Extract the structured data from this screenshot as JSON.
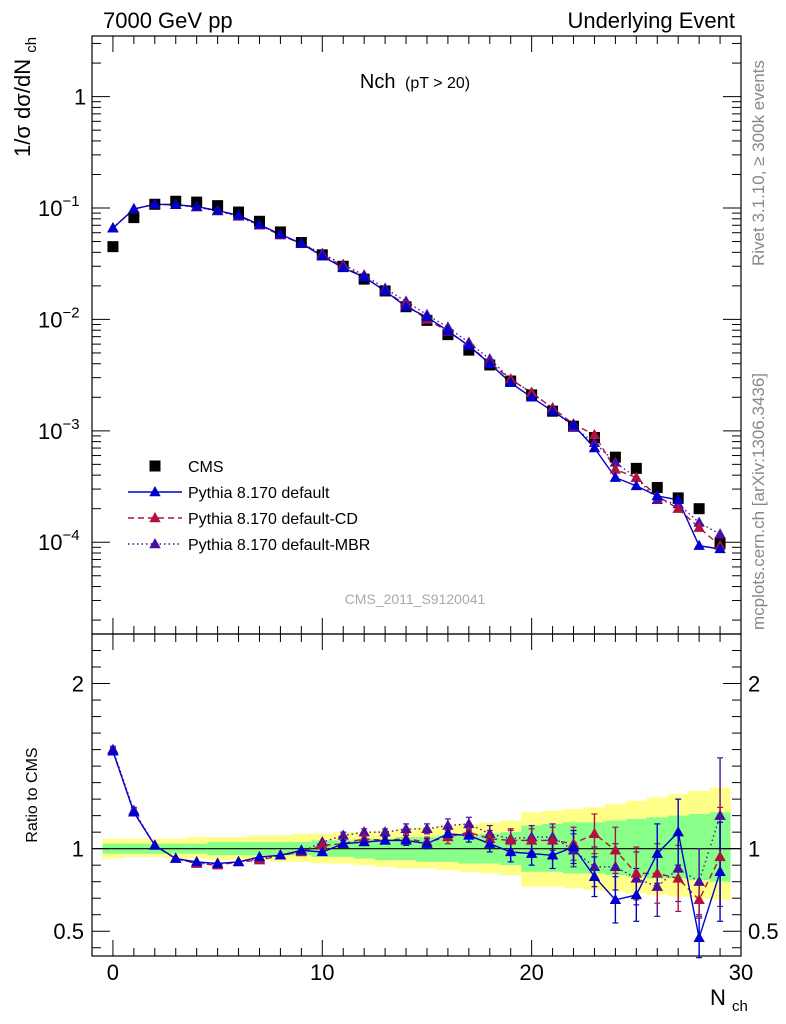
{
  "header": {
    "left": "7000 GeV pp",
    "right": "Underlying Event"
  },
  "plot_title": {
    "main": "Nch",
    "sub": "(pT > 20)"
  },
  "watermark": "CMS_2011_S9120041",
  "side_labels": {
    "rivet": "Rivet 3.1.10, ≥ 300k events",
    "mcplots": "mcplots.cern.ch [arXiv:1306.3436]"
  },
  "colors": {
    "cms": "#000000",
    "default": "#0000cc",
    "cd": "#b0123c",
    "mbr": "#4b0fa0",
    "band_yellow": "#ffff88",
    "band_green": "#88ff88"
  },
  "chart_data": [
    {
      "type": "scatter",
      "panel": "main",
      "ylabel_main": "1/σ dσ/dN",
      "ylabel_sub": "ch",
      "xlabel_main": "N",
      "xlabel_sub": "ch",
      "yscale": "log",
      "xlim": [
        -1,
        30
      ],
      "ylim": [
        1.5e-05,
        3.5
      ],
      "x_ticks": [
        0,
        10,
        20,
        30
      ],
      "y_ticks": [
        {
          "value": 1,
          "label": "1"
        },
        {
          "value": 0.1,
          "label": "10",
          "exp": "−1"
        },
        {
          "value": 0.01,
          "label": "10",
          "exp": "−2"
        },
        {
          "value": 0.001,
          "label": "10",
          "exp": "−3"
        },
        {
          "value": 0.0001,
          "label": "10",
          "exp": "−4"
        }
      ],
      "x": [
        0,
        1,
        2,
        3,
        4,
        5,
        6,
        7,
        8,
        9,
        10,
        11,
        12,
        13,
        14,
        15,
        16,
        17,
        18,
        19,
        20,
        21,
        22,
        23,
        24,
        25,
        26,
        27,
        28,
        29
      ],
      "series": [
        {
          "name": "CMS",
          "marker": "square",
          "values": [
            0.045,
            0.082,
            0.108,
            0.115,
            0.113,
            0.105,
            0.092,
            0.076,
            0.061,
            0.049,
            0.038,
            0.03,
            0.023,
            0.018,
            0.013,
            0.0098,
            0.0073,
            0.0053,
            0.0039,
            0.0028,
            0.0021,
            0.0015,
            0.0011,
            0.00087,
            0.00058,
            0.00046,
            0.00031,
            0.00025,
            0.0002,
            9.8e-05
          ]
        },
        {
          "name": "Pythia 8.170 default",
          "marker": "triangle",
          "line": "solid",
          "values": [
            0.066,
            0.098,
            0.108,
            0.107,
            0.103,
            0.095,
            0.086,
            0.071,
            0.058,
            0.048,
            0.037,
            0.029,
            0.024,
            0.018,
            0.013,
            0.0105,
            0.0079,
            0.0058,
            0.004,
            0.0027,
            0.002,
            0.0015,
            0.00113,
            0.0007,
            0.00038,
            0.00032,
            0.00026,
            0.00024,
            9.3e-05,
            8.7e-05
          ]
        },
        {
          "name": "Pythia 8.170 default-CD",
          "marker": "triangle",
          "line": "dashed",
          "values": [
            0.066,
            0.098,
            0.108,
            0.107,
            0.102,
            0.095,
            0.085,
            0.07,
            0.057,
            0.048,
            0.038,
            0.03,
            0.024,
            0.018,
            0.0135,
            0.01,
            0.0078,
            0.0058,
            0.0041,
            0.0029,
            0.0022,
            0.0016,
            0.00115,
            0.00092,
            0.00045,
            0.00038,
            0.00026,
            0.0002,
            0.000135,
            9.3e-05
          ]
        },
        {
          "name": "Pythia 8.170 default-MBR",
          "marker": "triangle",
          "line": "dotted",
          "values": [
            0.066,
            0.098,
            0.108,
            0.107,
            0.102,
            0.094,
            0.084,
            0.07,
            0.058,
            0.048,
            0.039,
            0.031,
            0.025,
            0.019,
            0.0145,
            0.011,
            0.0085,
            0.0062,
            0.0044,
            0.0029,
            0.0022,
            0.0016,
            0.00107,
            0.00078,
            0.00052,
            0.00038,
            0.00024,
            0.00022,
            0.00015,
            0.000118
          ]
        }
      ],
      "legend": {
        "placement": "lower-left"
      }
    },
    {
      "type": "scatter",
      "panel": "ratio",
      "ylabel": "Ratio to CMS",
      "xlim": [
        -1,
        30
      ],
      "ylim": [
        0.35,
        2.3
      ],
      "y_ticks": [
        0.5,
        1,
        2
      ],
      "y_tick_labels": [
        "0.5",
        "1",
        "2"
      ],
      "x": [
        0,
        1,
        2,
        3,
        4,
        5,
        6,
        7,
        8,
        9,
        10,
        11,
        12,
        13,
        14,
        15,
        16,
        17,
        18,
        19,
        20,
        21,
        22,
        23,
        24,
        25,
        26,
        27,
        28,
        29
      ],
      "band_yellow": {
        "lower": [
          0.94,
          0.95,
          0.95,
          0.94,
          0.94,
          0.93,
          0.93,
          0.93,
          0.92,
          0.92,
          0.91,
          0.91,
          0.9,
          0.89,
          0.88,
          0.88,
          0.87,
          0.86,
          0.85,
          0.84,
          0.77,
          0.77,
          0.76,
          0.75,
          0.74,
          0.73,
          0.72,
          0.71,
          0.7,
          0.69
        ],
        "upper": [
          1.06,
          1.06,
          1.06,
          1.06,
          1.07,
          1.07,
          1.07,
          1.08,
          1.08,
          1.09,
          1.09,
          1.1,
          1.1,
          1.11,
          1.12,
          1.13,
          1.14,
          1.15,
          1.16,
          1.17,
          1.22,
          1.23,
          1.24,
          1.25,
          1.27,
          1.29,
          1.31,
          1.33,
          1.35,
          1.37
        ]
      },
      "band_green": {
        "lower": [
          0.97,
          0.97,
          0.97,
          0.97,
          0.97,
          0.96,
          0.96,
          0.96,
          0.96,
          0.96,
          0.95,
          0.95,
          0.94,
          0.93,
          0.93,
          0.92,
          0.92,
          0.91,
          0.91,
          0.9,
          0.86,
          0.86,
          0.85,
          0.85,
          0.84,
          0.83,
          0.82,
          0.82,
          0.81,
          0.8
        ],
        "upper": [
          1.03,
          1.03,
          1.03,
          1.03,
          1.03,
          1.04,
          1.04,
          1.04,
          1.04,
          1.04,
          1.05,
          1.05,
          1.06,
          1.06,
          1.07,
          1.07,
          1.08,
          1.08,
          1.09,
          1.1,
          1.14,
          1.15,
          1.16,
          1.16,
          1.17,
          1.18,
          1.19,
          1.2,
          1.21,
          1.22
        ]
      },
      "series": [
        {
          "name": "Pythia 8.170 default",
          "values": [
            1.59,
            1.22,
            1.02,
            0.94,
            0.92,
            0.91,
            0.92,
            0.95,
            0.96,
            0.99,
            0.98,
            1.03,
            1.04,
            1.05,
            1.05,
            1.03,
            1.09,
            1.08,
            1.03,
            0.98,
            0.97,
            0.96,
            1.01,
            0.83,
            0.69,
            0.72,
            0.97,
            1.1,
            0.46,
            0.86
          ],
          "errors": [
            0.02,
            0.02,
            0.01,
            0.01,
            0.01,
            0.01,
            0.01,
            0.01,
            0.01,
            0.01,
            0.01,
            0.02,
            0.02,
            0.02,
            0.03,
            0.03,
            0.04,
            0.04,
            0.05,
            0.06,
            0.07,
            0.08,
            0.1,
            0.12,
            0.14,
            0.16,
            0.18,
            0.2,
            0.12,
            0.3
          ]
        },
        {
          "name": "Pythia 8.170 default-CD",
          "values": [
            1.59,
            1.22,
            1.02,
            0.94,
            0.91,
            0.9,
            0.92,
            0.93,
            0.96,
            0.98,
            1.02,
            1.03,
            1.06,
            1.05,
            1.06,
            1.04,
            1.07,
            1.1,
            1.06,
            1.05,
            1.05,
            1.05,
            1.03,
            1.09,
            0.99,
            0.85,
            0.85,
            0.82,
            0.69,
            0.95
          ],
          "errors": [
            0.02,
            0.02,
            0.01,
            0.01,
            0.01,
            0.01,
            0.01,
            0.01,
            0.01,
            0.01,
            0.01,
            0.02,
            0.02,
            0.02,
            0.03,
            0.03,
            0.04,
            0.04,
            0.05,
            0.06,
            0.07,
            0.08,
            0.1,
            0.12,
            0.14,
            0.16,
            0.18,
            0.2,
            0.1,
            0.3
          ]
        },
        {
          "name": "Pythia 8.170 default-MBR",
          "values": [
            1.6,
            1.23,
            1.02,
            0.94,
            0.91,
            0.91,
            0.92,
            0.94,
            0.96,
            0.98,
            1.04,
            1.08,
            1.1,
            1.1,
            1.12,
            1.12,
            1.14,
            1.15,
            1.09,
            1.06,
            1.07,
            1.07,
            0.99,
            0.89,
            0.89,
            0.82,
            0.77,
            0.88,
            0.8,
            1.2
          ],
          "errors": [
            0.02,
            0.02,
            0.01,
            0.01,
            0.01,
            0.01,
            0.01,
            0.01,
            0.01,
            0.01,
            0.01,
            0.02,
            0.02,
            0.02,
            0.03,
            0.03,
            0.04,
            0.04,
            0.05,
            0.06,
            0.07,
            0.08,
            0.1,
            0.12,
            0.14,
            0.16,
            0.18,
            0.2,
            0.2,
            0.35
          ]
        }
      ]
    }
  ]
}
